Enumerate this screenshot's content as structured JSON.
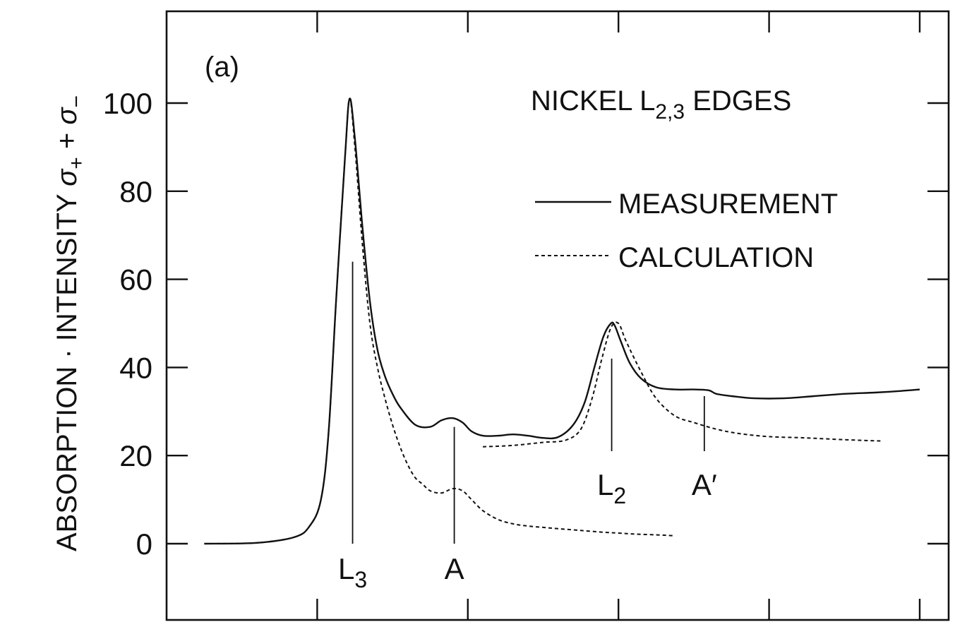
{
  "chart_data": {
    "type": "line",
    "panel_label": "(a)",
    "title": "NICKEL L",
    "title_sub": "2,3",
    "title_suffix": " EDGES",
    "ylabel_main": "ABSORPTION · INTENSITY ",
    "ylabel_sigma1": "σ",
    "ylabel_sub1": "+",
    "ylabel_plus": " + ",
    "ylabel_sigma2": "σ",
    "ylabel_sub2": "−",
    "xlabel": "",
    "ylim": [
      -17,
      120
    ],
    "xlim": [
      0,
      100
    ],
    "yticks": [
      0,
      20,
      40,
      60,
      80,
      100
    ],
    "ytick_labels": [
      "0",
      "20",
      "40",
      "60",
      "80",
      "100"
    ],
    "xticks": [
      20,
      40,
      60,
      80,
      100
    ],
    "grid": false,
    "legend_position": "top-right",
    "series": [
      {
        "name": "MEASUREMENT",
        "style": "solid",
        "x": [
          5,
          12,
          17,
          19,
          20.5,
          21.5,
          22.5,
          23.7,
          24.3,
          25,
          26,
          27,
          28,
          29,
          30,
          31,
          33,
          35,
          36.5,
          38,
          39.3,
          40.5,
          42,
          44,
          46,
          48,
          50,
          52,
          54,
          55.5,
          56.8,
          58,
          59,
          59.5,
          60.3,
          61.5,
          63,
          65,
          67.5,
          70,
          72,
          73,
          75,
          78,
          82,
          86,
          90,
          94,
          97,
          100
        ],
        "y": [
          0,
          0.2,
          1.5,
          4,
          10,
          25,
          55,
          88,
          101,
          92,
          72,
          55,
          44,
          38,
          34,
          31,
          27,
          26.5,
          28,
          28.5,
          27.5,
          25.5,
          24.5,
          24.5,
          24.8,
          24.5,
          24,
          24.2,
          27,
          32,
          40,
          47,
          50,
          49.5,
          46,
          41,
          37.5,
          35.5,
          35,
          35,
          34.8,
          34,
          33.5,
          33,
          33,
          33.5,
          34,
          34.3,
          34.6,
          35
        ]
      },
      {
        "name": "CALCULATION",
        "style": "dashed",
        "x": [
          5,
          12,
          17,
          19,
          20.5,
          21.5,
          22.5,
          23.7,
          24.3,
          25,
          26,
          27,
          28,
          29,
          30,
          31,
          32,
          33,
          34,
          35,
          36.5,
          38,
          39.3,
          40.5,
          42,
          44,
          46,
          48,
          50,
          52,
          55,
          58,
          60,
          62,
          65,
          67.5
        ],
        "y": [
          0,
          0.2,
          1.5,
          4,
          10,
          25,
          55,
          88,
          101,
          90,
          68,
          50,
          40,
          33,
          27,
          22,
          18,
          15,
          13.5,
          12,
          11.5,
          12.5,
          12,
          10,
          7.5,
          5.5,
          4.5,
          4,
          3.7,
          3.4,
          3,
          2.6,
          2.4,
          2.2,
          2,
          1.8
        ]
      },
      {
        "name": "CALCULATION",
        "style": "dashed",
        "x": [
          42,
          46,
          50,
          53,
          55,
          56.5,
          57.8,
          59,
          60,
          61,
          63,
          65,
          67.5,
          70,
          73,
          76,
          80,
          85,
          90,
          95
        ],
        "y": [
          22,
          22.3,
          23,
          23.5,
          26,
          33,
          42,
          49,
          50,
          46,
          39,
          33,
          29,
          27.5,
          26,
          25,
          24.3,
          24,
          23.6,
          23.3
        ]
      }
    ],
    "annotations": [
      {
        "label": "L",
        "sub": "3",
        "x": 24.7,
        "line_from": 0,
        "line_to": 64
      },
      {
        "label": "A",
        "sub": "",
        "x": 38.2,
        "line_from": 0,
        "line_to": 26.5
      },
      {
        "label": "L",
        "sub": "2",
        "x": 59.1,
        "line_from": 21,
        "line_to": 42
      },
      {
        "label": "A′",
        "sub": "",
        "x": 71.4,
        "line_from": 21,
        "line_to": 33.5
      }
    ]
  }
}
